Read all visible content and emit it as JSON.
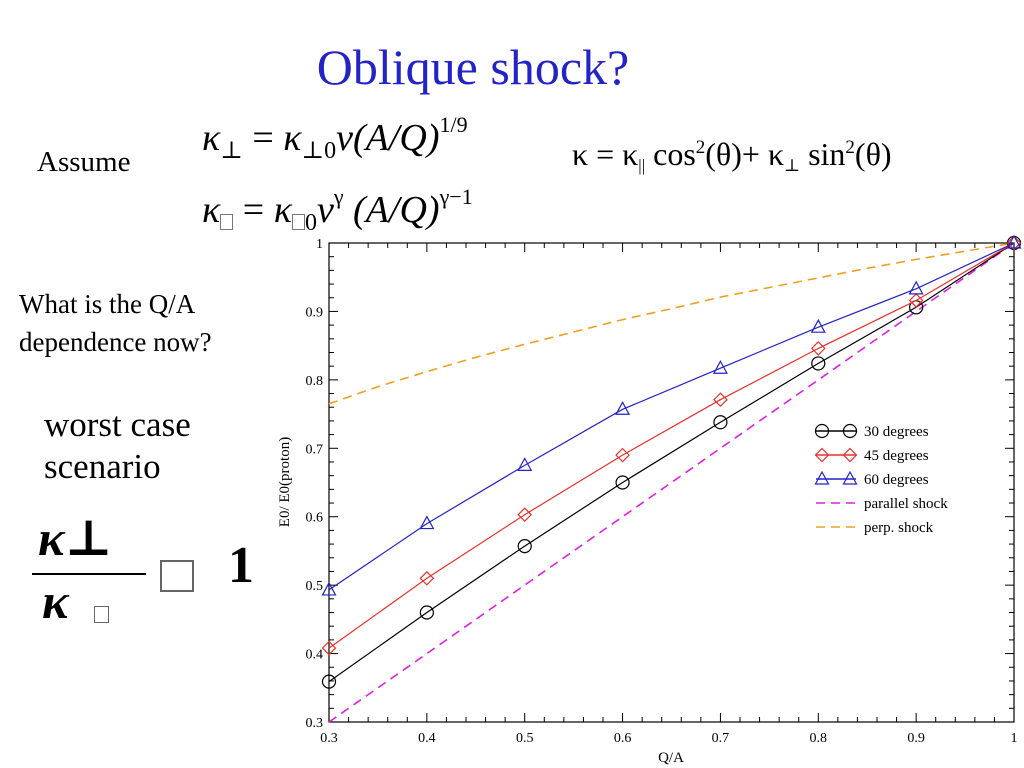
{
  "slide": {
    "title": "Oblique shock?",
    "assume": "Assume",
    "eq1": {
      "kappa": "κ",
      "perp": "⊥",
      "eqsign": " = ",
      "perp0": "⊥0",
      "v": "v",
      "aq": "(A/Q)",
      "exp": "1/9"
    },
    "eq2": {
      "kappa": "κ",
      "eqsign": " = ",
      "zero": "0",
      "v": "v",
      "vexp": "γ",
      "aq": " (A/Q)",
      "exp": "γ−1"
    },
    "kappa_eq": {
      "lhs": "κ = κ",
      "par": "||",
      "cos": " cos",
      "two": "2",
      "theta1": "(θ)+ κ",
      "perp": "⊥",
      "sin": " sin",
      "two2": "2",
      "theta2": "(θ)"
    },
    "question": "What is the Q/A dependence now?",
    "worst_case": "worst case scenario",
    "ratio": {
      "numerator": "κ⊥",
      "denominator": "κ",
      "rhs": "1"
    }
  },
  "chart_data": {
    "type": "line",
    "xlabel": "Q/A",
    "ylabel": "E0/ E0(proton)",
    "xlim": [
      0.3,
      1.0
    ],
    "ylim": [
      0.3,
      1.0
    ],
    "x_ticks": [
      "0.3",
      "0.4",
      "0.5",
      "0.6",
      "0.7",
      "0.8",
      "0.9",
      "1"
    ],
    "y_ticks": [
      "0.3",
      "0.4",
      "0.5",
      "0.6",
      "0.7",
      "0.8",
      "0.9",
      "1"
    ],
    "legend_position": "right-center",
    "grid": false,
    "series": [
      {
        "name": "30 degrees",
        "color": "#000000",
        "marker": "circle",
        "style": "solid",
        "x": [
          0.3,
          0.4,
          0.5,
          0.6,
          0.7,
          0.8,
          0.9,
          1.0
        ],
        "y": [
          0.359,
          0.46,
          0.557,
          0.65,
          0.738,
          0.824,
          0.906,
          1.0
        ]
      },
      {
        "name": "45 degrees",
        "color": "#e8302a",
        "marker": "diamond",
        "style": "solid",
        "x": [
          0.3,
          0.4,
          0.5,
          0.6,
          0.7,
          0.8,
          0.9,
          1.0
        ],
        "y": [
          0.408,
          0.51,
          0.603,
          0.69,
          0.771,
          0.846,
          0.916,
          1.0
        ]
      },
      {
        "name": "60 degrees",
        "color": "#2323c8",
        "marker": "triangle",
        "style": "solid",
        "x": [
          0.3,
          0.4,
          0.5,
          0.6,
          0.7,
          0.8,
          0.9,
          1.0
        ],
        "y": [
          0.493,
          0.59,
          0.675,
          0.757,
          0.817,
          0.877,
          0.933,
          1.0
        ]
      },
      {
        "name": "parallel shock",
        "color": "#e020e0",
        "marker": "none",
        "style": "dashed",
        "x": [
          0.3,
          0.4,
          0.5,
          0.6,
          0.7,
          0.8,
          0.9,
          1.0
        ],
        "y": [
          0.3,
          0.4,
          0.5,
          0.6,
          0.7,
          0.8,
          0.9,
          1.0
        ]
      },
      {
        "name": "perp. shock",
        "color": "#f0a020",
        "marker": "none",
        "style": "dashed",
        "x": [
          0.3,
          0.35,
          0.4,
          0.45,
          0.5,
          0.55,
          0.6,
          0.65,
          0.7,
          0.75,
          0.8,
          0.85,
          0.9,
          0.95,
          1.0
        ],
        "y": [
          0.765,
          0.79,
          0.812,
          0.833,
          0.852,
          0.87,
          0.888,
          0.904,
          0.921,
          0.935,
          0.949,
          0.963,
          0.976,
          0.988,
          1.0
        ]
      }
    ]
  }
}
